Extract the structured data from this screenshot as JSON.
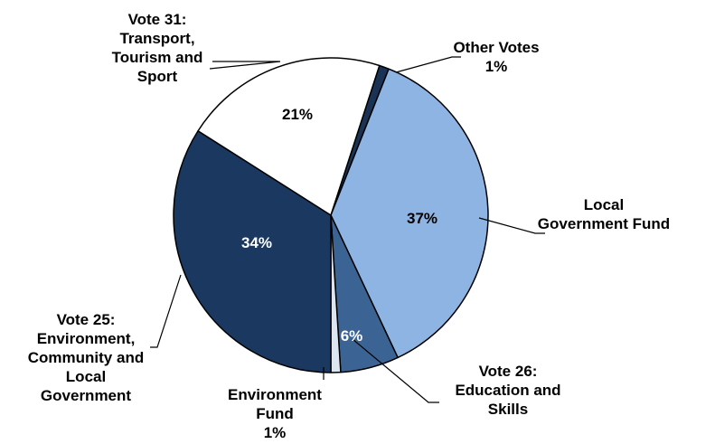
{
  "chart_data": {
    "type": "pie",
    "title": "",
    "slices": [
      {
        "name": "Other Votes",
        "value": 1,
        "label_lines": [
          "Other Votes",
          "1%"
        ],
        "value_label": "",
        "color": "#1a3355"
      },
      {
        "name": "Local Government Fund",
        "value": 37,
        "label_lines": [
          "Local",
          "Government Fund"
        ],
        "value_label": "37%",
        "color": "#8eb4e3"
      },
      {
        "name": "Vote 26: Education and Skills",
        "value": 6,
        "label_lines": [
          "Vote 26:",
          "Education and",
          "Skills"
        ],
        "value_label": "6%",
        "color": "#3b6495"
      },
      {
        "name": "Environment Fund",
        "value": 1,
        "label_lines": [
          "Environment",
          "Fund",
          "1%"
        ],
        "value_label": "",
        "color": "#dce6f2"
      },
      {
        "name": "Vote 25: Environment, Community and Local Government",
        "value": 34,
        "label_lines": [
          "Vote 25:",
          "Environment,",
          "Community and",
          "Local",
          "Government"
        ],
        "value_label": "34%",
        "color": "#1a3860"
      },
      {
        "name": "Vote 31: Transport, Tourism and Sport",
        "value": 21,
        "label_lines": [
          "Vote 31:",
          "Transport,",
          "Tourism and",
          "Sport"
        ],
        "value_label": "21%",
        "color": "#ffffff"
      }
    ]
  }
}
